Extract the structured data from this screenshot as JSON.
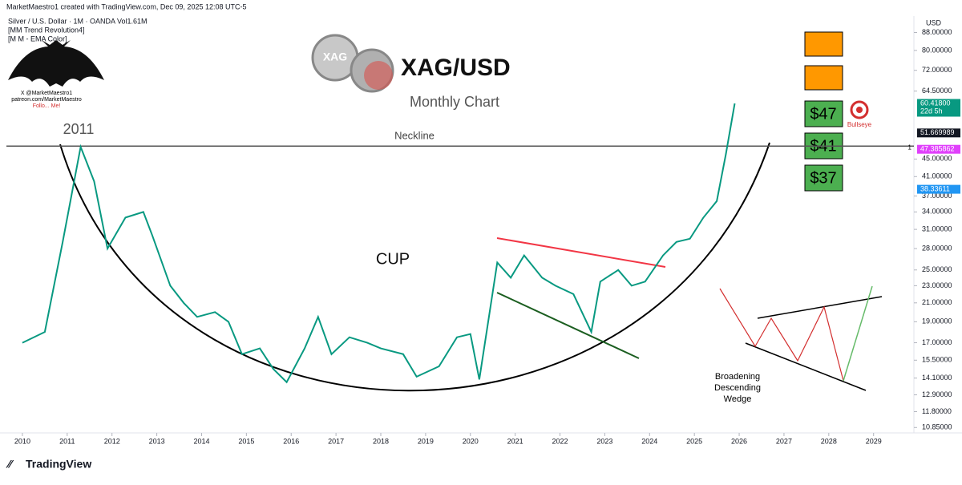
{
  "header": {
    "credit": "MarketMaestro1 created with TradingView.com, Dec 09, 2025 12:08 UTC-5",
    "symbol": "Silver / U.S. Dollar · 1M · OANDA  Vol1.61M",
    "indicators": [
      "[MM Trend Revolution4]",
      "[M M - EMA Color]"
    ],
    "logo_lines": [
      "X @MarketMaestro1",
      "patreon.com/MarketMaestro",
      "Follo... Me!"
    ]
  },
  "footer": {
    "brand": "TradingView"
  },
  "chart_data": {
    "type": "line",
    "title": "XAG/USD",
    "subtitle": "Monthly Chart",
    "coin_label": "XAG",
    "currency": "USD",
    "log_scale": true,
    "color": "#089981",
    "x": [
      2010.0,
      2010.5,
      2010.9,
      2011.3,
      2011.6,
      2011.9,
      2012.3,
      2012.7,
      2012.9,
      2013.3,
      2013.6,
      2013.9,
      2014.3,
      2014.6,
      2014.9,
      2015.3,
      2015.6,
      2015.9,
      2016.3,
      2016.6,
      2016.9,
      2017.3,
      2017.7,
      2018.0,
      2018.5,
      2018.8,
      2019.3,
      2019.7,
      2020.0,
      2020.2,
      2020.6,
      2020.9,
      2021.2,
      2021.6,
      2021.9,
      2022.3,
      2022.7,
      2022.9,
      2023.3,
      2023.6,
      2023.9,
      2024.3,
      2024.6,
      2024.9,
      2025.2,
      2025.5,
      2025.7,
      2025.9
    ],
    "values": [
      17,
      18,
      29,
      48,
      40,
      28,
      33,
      34,
      30,
      23,
      21,
      19.5,
      20,
      19,
      16,
      16.5,
      14.8,
      13.8,
      16.5,
      19.5,
      16,
      17.5,
      17,
      16.5,
      16,
      14.2,
      15,
      17.5,
      17.8,
      14,
      26,
      24,
      27,
      24,
      23,
      22,
      18,
      23.5,
      25,
      23,
      23.5,
      27,
      29,
      29.5,
      33,
      36,
      46,
      60.4
    ],
    "xlim": [
      2009.5,
      2029.9
    ],
    "xticks": [
      2010,
      2011,
      2012,
      2013,
      2014,
      2015,
      2016,
      2017,
      2018,
      2019,
      2020,
      2021,
      2022,
      2023,
      2024,
      2025,
      2026,
      2027,
      2028,
      2029
    ],
    "ylim": [
      10.5,
      92
    ],
    "yticks": [
      {
        "value": 10.85,
        "label": "10.85000"
      },
      {
        "value": 11.8,
        "label": "11.80000"
      },
      {
        "value": 12.9,
        "label": "12.90000"
      },
      {
        "value": 14.1,
        "label": "14.10000"
      },
      {
        "value": 15.5,
        "label": "15.50000"
      },
      {
        "value": 17,
        "label": "17.00000"
      },
      {
        "value": 19,
        "label": "19.00000"
      },
      {
        "value": 21,
        "label": "21.00000"
      },
      {
        "value": 23,
        "label": "23.00000"
      },
      {
        "value": 25,
        "label": "25.00000"
      },
      {
        "value": 28,
        "label": "28.00000"
      },
      {
        "value": 31,
        "label": "31.00000"
      },
      {
        "value": 34,
        "label": "34.00000"
      },
      {
        "value": 37,
        "label": "37.00000"
      },
      {
        "value": 41,
        "label": "41.00000"
      },
      {
        "value": 45,
        "label": "45.00000"
      },
      {
        "value": 64.5,
        "label": "64.50000"
      },
      {
        "value": 72,
        "label": "72.00000"
      },
      {
        "value": 80,
        "label": "80.00000"
      },
      {
        "value": 88,
        "label": "88.00000"
      }
    ],
    "price_labels": [
      {
        "value": 60.418,
        "label": "60.41800",
        "note": "22d 5h",
        "color": "#089981"
      },
      {
        "value": 51.669989,
        "label": "51.669989",
        "color": "#131722"
      },
      {
        "value": 47.385862,
        "label": "47.385862",
        "color": "#e040fb"
      },
      {
        "value": 38.33611,
        "label": "38.33611",
        "color": "#2196f3"
      }
    ],
    "neckline": {
      "label": "Neckline",
      "value": 48.2,
      "marker": "1"
    },
    "annotations": {
      "peak": "2011",
      "cup": "CUP",
      "targets": [
        "$47",
        "$41",
        "$37"
      ],
      "bullseye": "Bullseye",
      "pattern": [
        "Broadening",
        "Descending",
        "Wedge"
      ]
    }
  }
}
